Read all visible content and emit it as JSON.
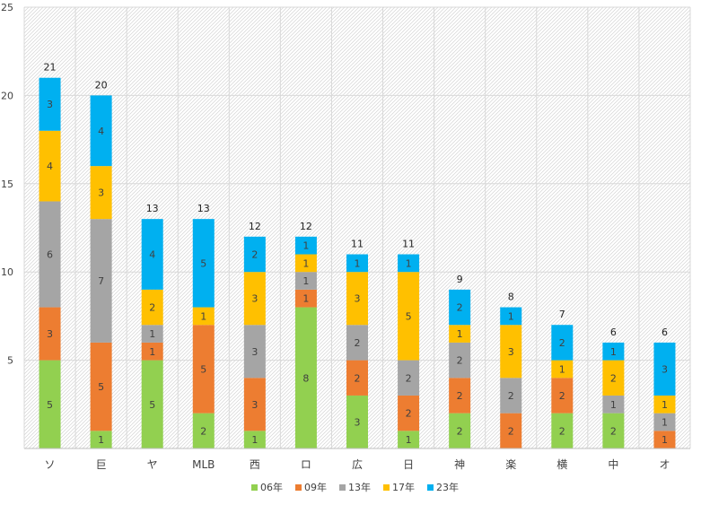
{
  "chart_data": {
    "type": "bar",
    "stacked": true,
    "title": "",
    "xlabel": "",
    "ylabel": "",
    "ylim": [
      0,
      25
    ],
    "yticks": [
      5,
      10,
      15,
      20,
      25
    ],
    "grid": true,
    "legend_position": "bottom",
    "categories": [
      "ソ",
      "巨",
      "ヤ",
      "MLB",
      "西",
      "ロ",
      "広",
      "日",
      "神",
      "楽",
      "横",
      "中",
      "オ"
    ],
    "series": [
      {
        "name": "06年",
        "color": "#92d050",
        "values": [
          5,
          1,
          5,
          2,
          1,
          8,
          3,
          1,
          2,
          0,
          2,
          2,
          0
        ]
      },
      {
        "name": "09年",
        "color": "#ed7d31",
        "values": [
          3,
          5,
          1,
          5,
          3,
          1,
          2,
          2,
          2,
          2,
          2,
          0,
          1
        ]
      },
      {
        "name": "13年",
        "color": "#a5a5a5",
        "values": [
          6,
          7,
          1,
          0,
          3,
          1,
          2,
          2,
          2,
          2,
          0,
          1,
          1
        ]
      },
      {
        "name": "17年",
        "color": "#ffc000",
        "values": [
          4,
          3,
          2,
          1,
          3,
          1,
          3,
          5,
          1,
          3,
          1,
          2,
          1
        ]
      },
      {
        "name": "23年",
        "color": "#00b0f0",
        "values": [
          3,
          4,
          4,
          5,
          2,
          1,
          1,
          1,
          2,
          1,
          2,
          1,
          3
        ]
      }
    ],
    "totals": [
      21,
      20,
      13,
      13,
      12,
      12,
      11,
      11,
      9,
      8,
      7,
      6,
      6
    ]
  }
}
